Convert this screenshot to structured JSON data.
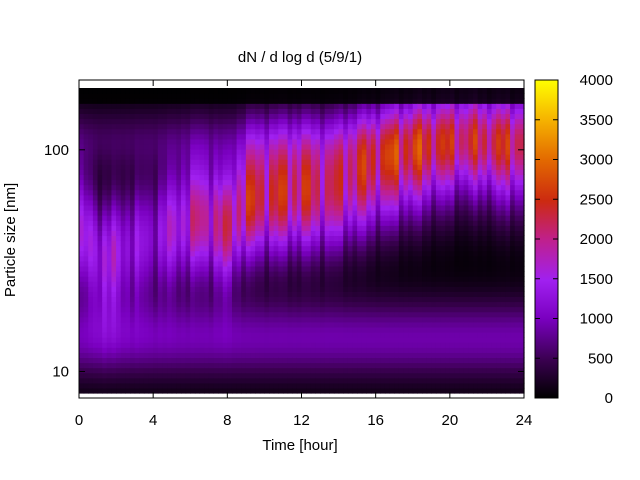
{
  "chart_data": {
    "type": "heatmap",
    "title": "dN / d log d (5/9/1)",
    "xlabel": "Time [hour]",
    "ylabel": "Particle size [nm]",
    "x_range": [
      0,
      24
    ],
    "y_range_nm": [
      8,
      190
    ],
    "y_scale": "log",
    "x_ticks": [
      0,
      4,
      8,
      12,
      16,
      20,
      24
    ],
    "y_ticks": [
      10,
      100
    ],
    "colorbar": {
      "range": [
        0,
        4000
      ],
      "ticks": [
        0,
        500,
        1000,
        1500,
        2000,
        2500,
        3000,
        3500,
        4000
      ],
      "palette": "black-purple-red-orange-yellow"
    },
    "intensity_profile": {
      "description_hours": [
        0,
        1.2,
        3.8,
        6.5,
        8,
        9.2,
        11.8,
        13.5,
        15.8,
        17.3,
        20.8,
        23.3
      ],
      "peak_size_nm": [
        45,
        32,
        40,
        50,
        45,
        60,
        65,
        65,
        80,
        90,
        110,
        100
      ],
      "peak_value": [
        1700,
        2000,
        1500,
        2500,
        2600,
        3000,
        3000,
        2700,
        2800,
        2900,
        2300,
        2500
      ]
    }
  }
}
